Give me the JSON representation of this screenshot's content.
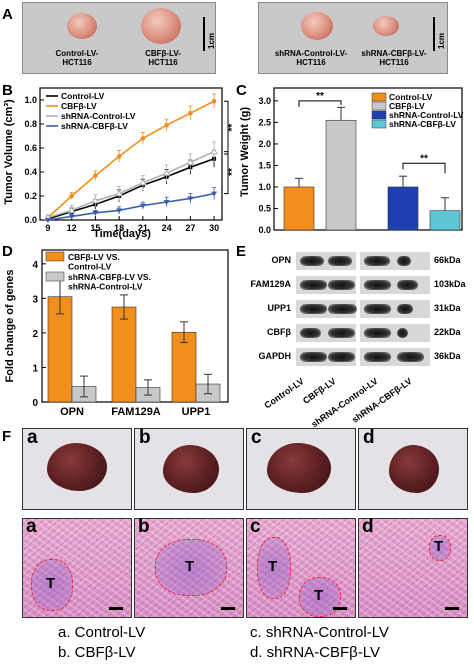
{
  "panel_labels": {
    "a": "A",
    "b": "B",
    "c": "C",
    "d": "D",
    "e": "E",
    "f": "F"
  },
  "panelA": {
    "left": {
      "labels": [
        "Control-LV-\nHCT116",
        "CBFβ-LV-\nHCT116"
      ],
      "scale": "1cm"
    },
    "right": {
      "labels": [
        "shRNA-Control-LV-\nHCT116",
        "shRNA-CBFβ-LV-\nHCT116"
      ],
      "scale": "1cm"
    }
  },
  "chart_data": [
    {
      "type": "line",
      "xlabel": "Time(days)",
      "ylabel": "Tumor Volume (cm³)",
      "x": [
        9,
        12,
        15,
        18,
        21,
        24,
        27,
        30
      ],
      "xlim": [
        8,
        31
      ],
      "ylim": [
        0,
        1.1
      ],
      "yticks": [
        0.0,
        0.2,
        0.4,
        0.6,
        0.8,
        1.0
      ],
      "xticks": [
        9,
        12,
        15,
        18,
        21,
        24,
        27,
        30
      ],
      "legend_position": "top-left",
      "series": [
        {
          "name": "Control-LV",
          "color": "#000000",
          "values": [
            0.01,
            0.07,
            0.13,
            0.2,
            0.29,
            0.36,
            0.44,
            0.51
          ],
          "err": [
            0.01,
            0.03,
            0.04,
            0.05,
            0.05,
            0.06,
            0.06,
            0.07
          ]
        },
        {
          "name": "CBFβ-LV",
          "color": "#f28e1c",
          "values": [
            0.02,
            0.2,
            0.37,
            0.53,
            0.68,
            0.79,
            0.89,
            0.99
          ],
          "err": [
            0.02,
            0.03,
            0.04,
            0.05,
            0.05,
            0.05,
            0.06,
            0.06
          ]
        },
        {
          "name": "shRNA-Control-LV",
          "color": "#b0b0b0",
          "values": [
            0.02,
            0.08,
            0.16,
            0.22,
            0.31,
            0.39,
            0.48,
            0.57
          ],
          "err": [
            0.02,
            0.04,
            0.05,
            0.06,
            0.06,
            0.07,
            0.07,
            0.08
          ]
        },
        {
          "name": "shRNA-CBFβ-LV",
          "color": "#3a5fb0",
          "values": [
            0.0,
            0.03,
            0.06,
            0.08,
            0.12,
            0.15,
            0.18,
            0.22
          ],
          "err": [
            0.0,
            0.02,
            0.02,
            0.03,
            0.03,
            0.04,
            0.04,
            0.05
          ]
        }
      ],
      "annotations": [
        "**",
        "**"
      ]
    },
    {
      "type": "bar",
      "ylabel": "Tumor Weight (g)",
      "categories": [
        "Control-LV",
        "CBFβ-LV",
        "shRNA-Control-LV",
        "shRNA-CBFβ-LV"
      ],
      "values": [
        1.0,
        2.55,
        1.0,
        0.45
      ],
      "err": [
        0.2,
        0.3,
        0.25,
        0.3
      ],
      "colors": [
        "#f28e1c",
        "#c8c8c8",
        "#1f3fb0",
        "#5dc7d4"
      ],
      "ylim": [
        0,
        3.3
      ],
      "yticks": [
        0.0,
        0.5,
        1.0,
        1.5,
        2.0,
        2.5,
        3.0
      ],
      "legend_position": "top-right",
      "annotations": [
        "**",
        "**"
      ]
    },
    {
      "type": "bar",
      "ylabel": "Fold change of genes",
      "categories": [
        "OPN",
        "FAM129A",
        "UPP1"
      ],
      "series": [
        {
          "name": "CBFβ-LV VS.\nControl-LV",
          "color": "#f28e1c",
          "values": [
            3.05,
            2.75,
            2.02
          ],
          "err": [
            0.5,
            0.35,
            0.3
          ]
        },
        {
          "name": "shRNA-CBFβ-LV VS.\nshRNA-Control-LV",
          "color": "#c8c8c8",
          "values": [
            0.45,
            0.42,
            0.52
          ],
          "err": [
            0.3,
            0.22,
            0.28
          ]
        }
      ],
      "ylim": [
        0,
        4.4
      ],
      "yticks": [
        0,
        1,
        2,
        3,
        4
      ],
      "legend_position": "top-left"
    }
  ],
  "panelE": {
    "rows": [
      {
        "name": "OPN",
        "kda": "66kDa"
      },
      {
        "name": "FAM129A",
        "kda": "103kDa"
      },
      {
        "name": "UPP1",
        "kda": "31kDa"
      },
      {
        "name": "CBFβ",
        "kda": "22kDa"
      },
      {
        "name": "GAPDH",
        "kda": "36kDa"
      }
    ],
    "lanes": [
      "Control-LV",
      "CBFβ-LV",
      "shRNA-Control-LV",
      "shRNA-CBFβ-LV"
    ]
  },
  "panelF": {
    "top_labels": [
      "a",
      "b",
      "c",
      "d"
    ],
    "bottom_labels": [
      "a",
      "b",
      "c",
      "d"
    ],
    "tumor_mark": "T",
    "legend": [
      "a. Control-LV",
      "b. CBFβ-LV",
      "c. shRNA-Control-LV",
      "d. shRNA-CBFβ-LV"
    ]
  }
}
